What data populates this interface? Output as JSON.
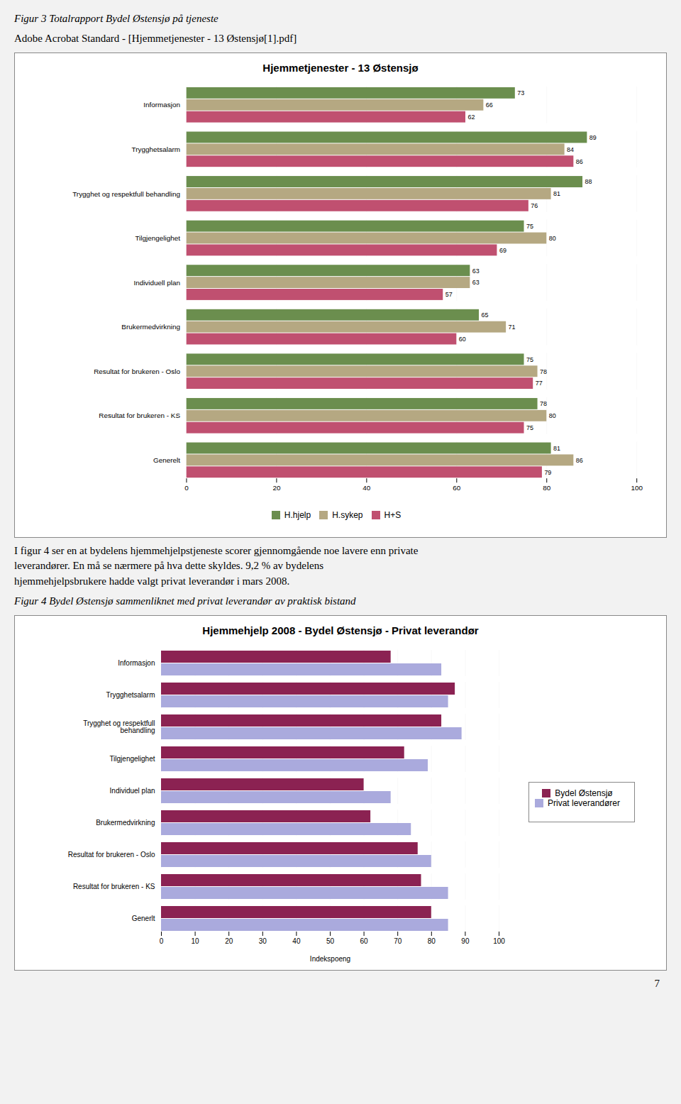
{
  "chart_data": [
    {
      "type": "bar",
      "orientation": "horizontal",
      "title": "Hjemmetjenester - 13 Østensjø",
      "annotations": [
        "Figur 3 Totalrapport Bydel Østensjø på tjeneste",
        "Adobe Acrobat Standard - [Hjemmetjenester - 13 Østensjø[1].pdf]"
      ],
      "categories": [
        "Generelt",
        "Resultat for brukeren - KS",
        "Resultat for brukeren - Oslo",
        "Brukermedvirkning",
        "Individuell plan",
        "Tilgjengelighet",
        "Trygghet og respektfull behandling",
        "Trygghetsalarm",
        "Informasjon"
      ],
      "series": [
        {
          "name": "H.hjelp",
          "color": "#6B8E4E",
          "values": [
            81,
            78,
            75,
            65,
            63,
            75,
            88,
            89,
            73
          ]
        },
        {
          "name": "H.sykep",
          "color": "#B5A882",
          "values": [
            86,
            80,
            78,
            71,
            63,
            80,
            81,
            84,
            66
          ]
        },
        {
          "name": "H+S",
          "color": "#C05070",
          "values": [
            79,
            75,
            77,
            60,
            57,
            69,
            76,
            86,
            62
          ]
        }
      ],
      "xlim": [
        0,
        100
      ],
      "xticks": [
        0,
        20,
        40,
        60,
        80,
        100
      ],
      "grid": true,
      "legend": "bottom",
      "data_labels": true
    },
    {
      "type": "bar",
      "orientation": "horizontal",
      "title": "Hjemmehjelp 2008 - Bydel Østensjø - Privat leverandør",
      "xlabel": "Indekspoeng",
      "annotations": [
        "I figur 4 ser en at bydelens hjemmehjelpstjeneste scorer gjennomgående noe lavere enn private\nleverandører.  En må se nærmere på hva dette skyldes.  9,2 % av bydelens\nhjemmehjelpsbrukere hadde valgt privat leverandør i mars 2008.",
        "Figur 4 Bydel Østensjø sammenliknet med privat leverandør av praktisk bistand",
        "7"
      ],
      "categories": [
        "Generlt",
        "Resultat for brukeren - KS",
        "Resultat for brukeren - Oslo",
        "Brukermedvirkning",
        "Individuel plan",
        "Tilgjengelighet",
        "Trygghet og respektfull\nbehandling",
        "Trygghetsalarm",
        "Informasjon"
      ],
      "series": [
        {
          "name": "Bydel Østensjø",
          "color": "#8B2252",
          "values": [
            80,
            77,
            76,
            62,
            60,
            72,
            83,
            87,
            68
          ]
        },
        {
          "name": "Privat leverandører",
          "color": "#AAAADD",
          "values": [
            85,
            85,
            80,
            74,
            68,
            79,
            89,
            85,
            83
          ]
        }
      ],
      "xlim": [
        0,
        100
      ],
      "xticks": [
        0,
        10,
        20,
        30,
        40,
        50,
        60,
        70,
        80,
        90,
        100
      ],
      "grid": true,
      "legend": "right",
      "data_labels": false
    }
  ]
}
